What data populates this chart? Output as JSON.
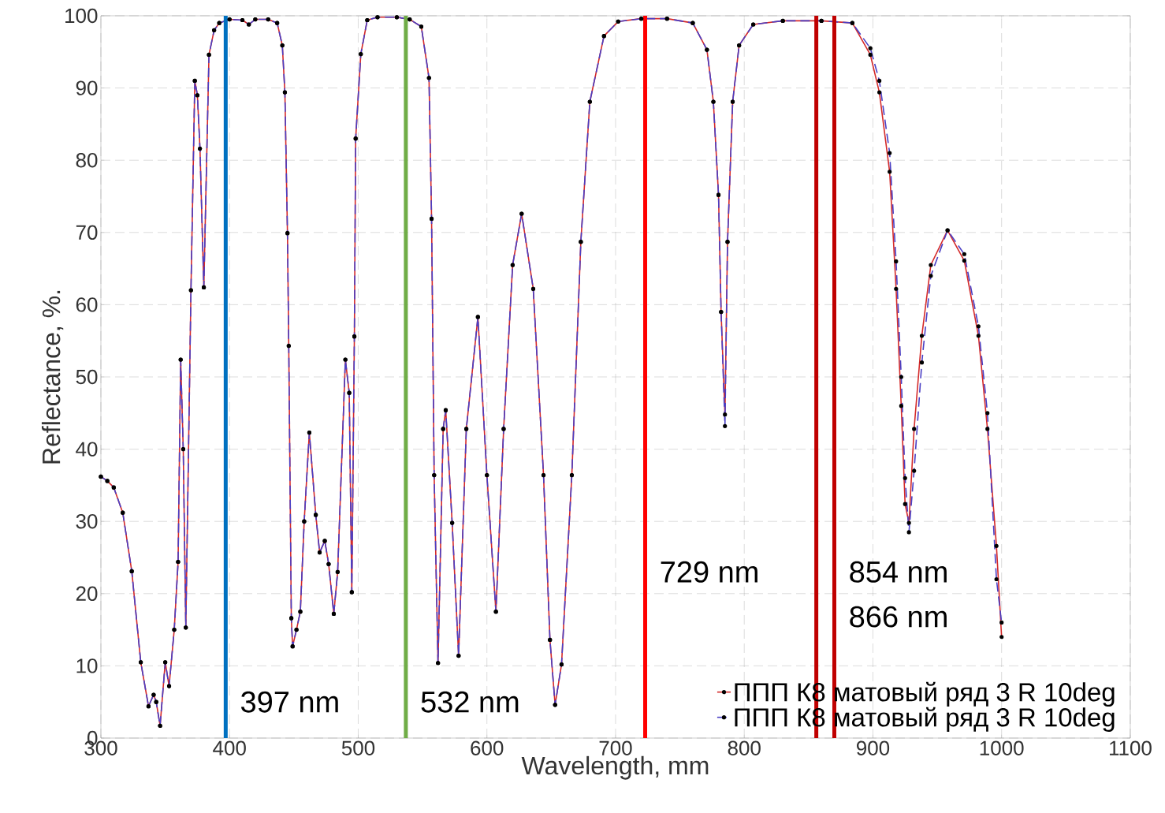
{
  "chart_data": {
    "type": "line",
    "xlabel": "Wavelength, mm",
    "ylabel": "Reflectance, %.",
    "x": [
      300,
      305,
      310,
      317,
      324,
      331,
      337,
      341,
      343,
      346,
      350,
      353,
      357,
      360,
      362,
      364,
      366,
      370,
      373,
      375,
      377,
      380,
      384,
      388,
      392,
      400,
      410,
      415,
      420,
      430,
      437,
      441,
      443,
      445,
      446,
      448,
      449,
      452,
      455,
      458,
      462,
      467,
      470,
      474,
      477,
      481,
      484,
      490,
      493,
      495,
      497,
      498,
      502,
      507,
      515,
      530,
      540,
      549,
      555,
      557,
      559,
      562,
      566,
      568,
      573,
      578,
      584,
      593,
      600,
      607,
      613,
      620,
      627,
      636,
      644,
      649,
      653,
      658,
      666,
      673,
      680,
      691,
      702,
      720,
      740,
      760,
      771,
      776,
      780,
      782,
      785,
      787,
      791,
      796,
      807,
      830,
      860,
      884,
      898,
      905,
      913,
      918,
      922,
      925,
      928,
      932,
      938,
      945,
      958,
      971,
      982,
      989,
      996,
      1000
    ],
    "series": [
      {
        "name": "ППП К8 матовый ряд 3 R 10deg",
        "color": "#d42a2a",
        "line_style": "solid",
        "values": [
          36.2,
          35.6,
          34.7,
          31.2,
          23.1,
          10.5,
          4.4,
          6.0,
          5.0,
          1.7,
          10.5,
          7.2,
          15,
          24.4,
          52.4,
          40,
          15.3,
          62,
          91,
          89,
          81.6,
          62.4,
          94.6,
          98,
          99,
          99.5,
          99.4,
          98.8,
          99.5,
          99.5,
          99,
          95.9,
          89.4,
          69.9,
          54.3,
          16.6,
          12.7,
          15,
          17.5,
          30,
          42.3,
          30.9,
          25.7,
          27.3,
          24.1,
          17.2,
          23,
          52.4,
          47.8,
          20.2,
          55.6,
          83,
          94.7,
          99.4,
          99.8,
          99.8,
          99.5,
          98.5,
          91.4,
          71.9,
          36.4,
          10.4,
          42.8,
          45.4,
          29.8,
          11.4,
          42.8,
          58.3,
          36.4,
          17.5,
          42.8,
          65.5,
          72.6,
          62.2,
          36.4,
          13.6,
          4.6,
          10.2,
          36.4,
          68.7,
          88.1,
          97.2,
          99.2,
          99.6,
          99.6,
          99,
          95.3,
          88.1,
          75.2,
          59,
          44.8,
          68.7,
          88.1,
          95.9,
          98.8,
          99.3,
          99.3,
          99,
          94.6,
          89.4,
          78.4,
          62.2,
          46,
          32.4,
          29.8,
          42.8,
          55.7,
          65.5,
          70.3,
          66.1,
          55.7,
          42.8,
          26.6,
          14
        ]
      },
      {
        "name": "ППП К8 матовый ряд 3 R 10deg",
        "color": "#4a3fc4",
        "line_style": "dashed",
        "values": [
          36.2,
          35.6,
          34.7,
          31.2,
          23.1,
          10.5,
          4.4,
          6.0,
          5.0,
          1.7,
          10.5,
          7.2,
          15,
          24.4,
          52.4,
          40,
          15.3,
          62,
          91,
          89,
          81.6,
          62.4,
          94.6,
          98,
          99,
          99.5,
          99.4,
          98.8,
          99.5,
          99.5,
          99,
          95.9,
          89.4,
          69.9,
          54.3,
          16.6,
          12.7,
          15,
          17.5,
          30,
          42.3,
          30.9,
          25.7,
          27.3,
          24.1,
          17.2,
          23,
          52.4,
          47.8,
          20.2,
          55.6,
          83,
          94.7,
          99.4,
          99.8,
          99.8,
          99.5,
          98.5,
          91.4,
          71.9,
          36.4,
          10.4,
          42.8,
          45.4,
          29.8,
          11.4,
          42.8,
          58.3,
          36.4,
          17.5,
          42.8,
          65.5,
          72.6,
          62.2,
          36.4,
          13.6,
          4.6,
          10.2,
          36.4,
          68.7,
          88.1,
          97.2,
          99.2,
          99.6,
          99.6,
          99,
          95.3,
          88.1,
          75.2,
          59,
          43.2,
          68.7,
          88.1,
          95.9,
          98.8,
          99.3,
          99.3,
          99,
          95.5,
          91,
          81,
          66,
          50,
          36,
          28.5,
          37,
          52,
          64,
          70.3,
          67,
          57,
          45,
          22,
          16
        ]
      }
    ],
    "xlim": [
      300,
      1100
    ],
    "ylim": [
      0,
      100
    ],
    "xticks": [
      300,
      400,
      500,
      600,
      700,
      800,
      900,
      1000,
      1100
    ],
    "yticks": [
      0,
      10,
      20,
      30,
      40,
      50,
      60,
      70,
      80,
      90,
      100
    ],
    "grid": true,
    "legend": "bottom right",
    "marker": "circle",
    "ref_lines": [
      {
        "axis": "x",
        "value": 397,
        "color": "#0070c0",
        "label": "397 nm"
      },
      {
        "axis": "x",
        "value": 537,
        "color": "#70ad47",
        "label": "532 nm"
      },
      {
        "axis": "x",
        "value": 723,
        "color": "#ff0000",
        "label": "729 nm"
      },
      {
        "axis": "x",
        "value": 856,
        "color": "#c00000",
        "label": "854 nm"
      },
      {
        "axis": "x",
        "value": 870,
        "color": "#c00000",
        "label": "866 nm"
      }
    ]
  }
}
